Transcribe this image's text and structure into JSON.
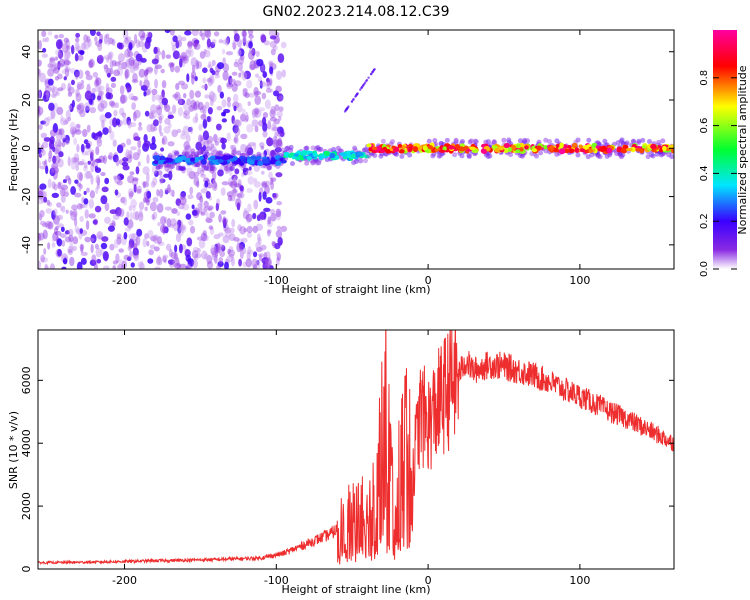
{
  "title": "GN02.2023.214.08.12.C39",
  "colors": {
    "snr_line": "#ee2e2e",
    "colorbar_stops": [
      "#ffffff",
      "#8a2be2",
      "#3a00ff",
      "#00e5ff",
      "#00ff30",
      "#ffff00",
      "#ff0000",
      "#ff00a0"
    ]
  },
  "chart_data": [
    {
      "type": "heatmap",
      "title": "GN02.2023.214.08.12.C39",
      "xlabel": "Height of straight line (km)",
      "ylabel": "Frequency (Hz)",
      "xlim": [
        -257,
        162
      ],
      "ylim": [
        -50,
        49
      ],
      "xticks": [
        -200,
        -100,
        0,
        100
      ],
      "yticks": [
        -40,
        -20,
        0,
        20,
        40
      ],
      "colorbar": {
        "label": "Normalized spectral amplitude",
        "range": [
          0.0,
          1.0
        ],
        "ticks": [
          0.0,
          0.2,
          0.4,
          0.6,
          0.8
        ]
      },
      "features": [
        {
          "kind": "broadband noise",
          "x_range": [
            -257,
            -95
          ],
          "y_range": [
            -50,
            49
          ],
          "amplitude": 0.1
        },
        {
          "kind": "ridge",
          "x_range": [
            -180,
            -95
          ],
          "y_center": -5,
          "amplitude": 0.3
        },
        {
          "kind": "ridge",
          "x_range": [
            -95,
            -40
          ],
          "y_center": -3,
          "amplitude": 0.45
        },
        {
          "kind": "ridge",
          "x_range": [
            -40,
            162
          ],
          "y_center": 0,
          "amplitude": 0.95
        },
        {
          "kind": "streak",
          "x_range": [
            -55,
            -35
          ],
          "y_range": [
            15,
            33
          ],
          "amplitude": 0.15
        }
      ]
    },
    {
      "type": "line",
      "xlabel": "Height of straight line (km)",
      "ylabel": "SNR (10 * v/v)",
      "xlim": [
        -257,
        162
      ],
      "ylim": [
        0,
        7600
      ],
      "xticks": [
        -200,
        -100,
        0,
        100
      ],
      "yticks": [
        0,
        2000,
        4000,
        6000
      ],
      "series": [
        {
          "x": [
            -257,
            -220,
            -180,
            -140,
            -110,
            -95,
            -85,
            -75,
            -65,
            -55,
            -45,
            -40,
            -35,
            -30,
            -28,
            -25,
            -22,
            -20,
            -15,
            -10,
            -5,
            0,
            10,
            20,
            25,
            30,
            40,
            50,
            60,
            70,
            80,
            90,
            100,
            110,
            120,
            130,
            140,
            150,
            162
          ],
          "y": [
            200,
            220,
            260,
            300,
            350,
            500,
            700,
            900,
            1100,
            1400,
            1800,
            1500,
            2600,
            3800,
            5000,
            3500,
            1200,
            2500,
            4200,
            3200,
            5000,
            4600,
            5500,
            6200,
            6600,
            6300,
            6500,
            6450,
            6300,
            6150,
            5950,
            5700,
            5500,
            5250,
            5000,
            4800,
            4550,
            4300,
            4000
          ]
        }
      ]
    }
  ]
}
